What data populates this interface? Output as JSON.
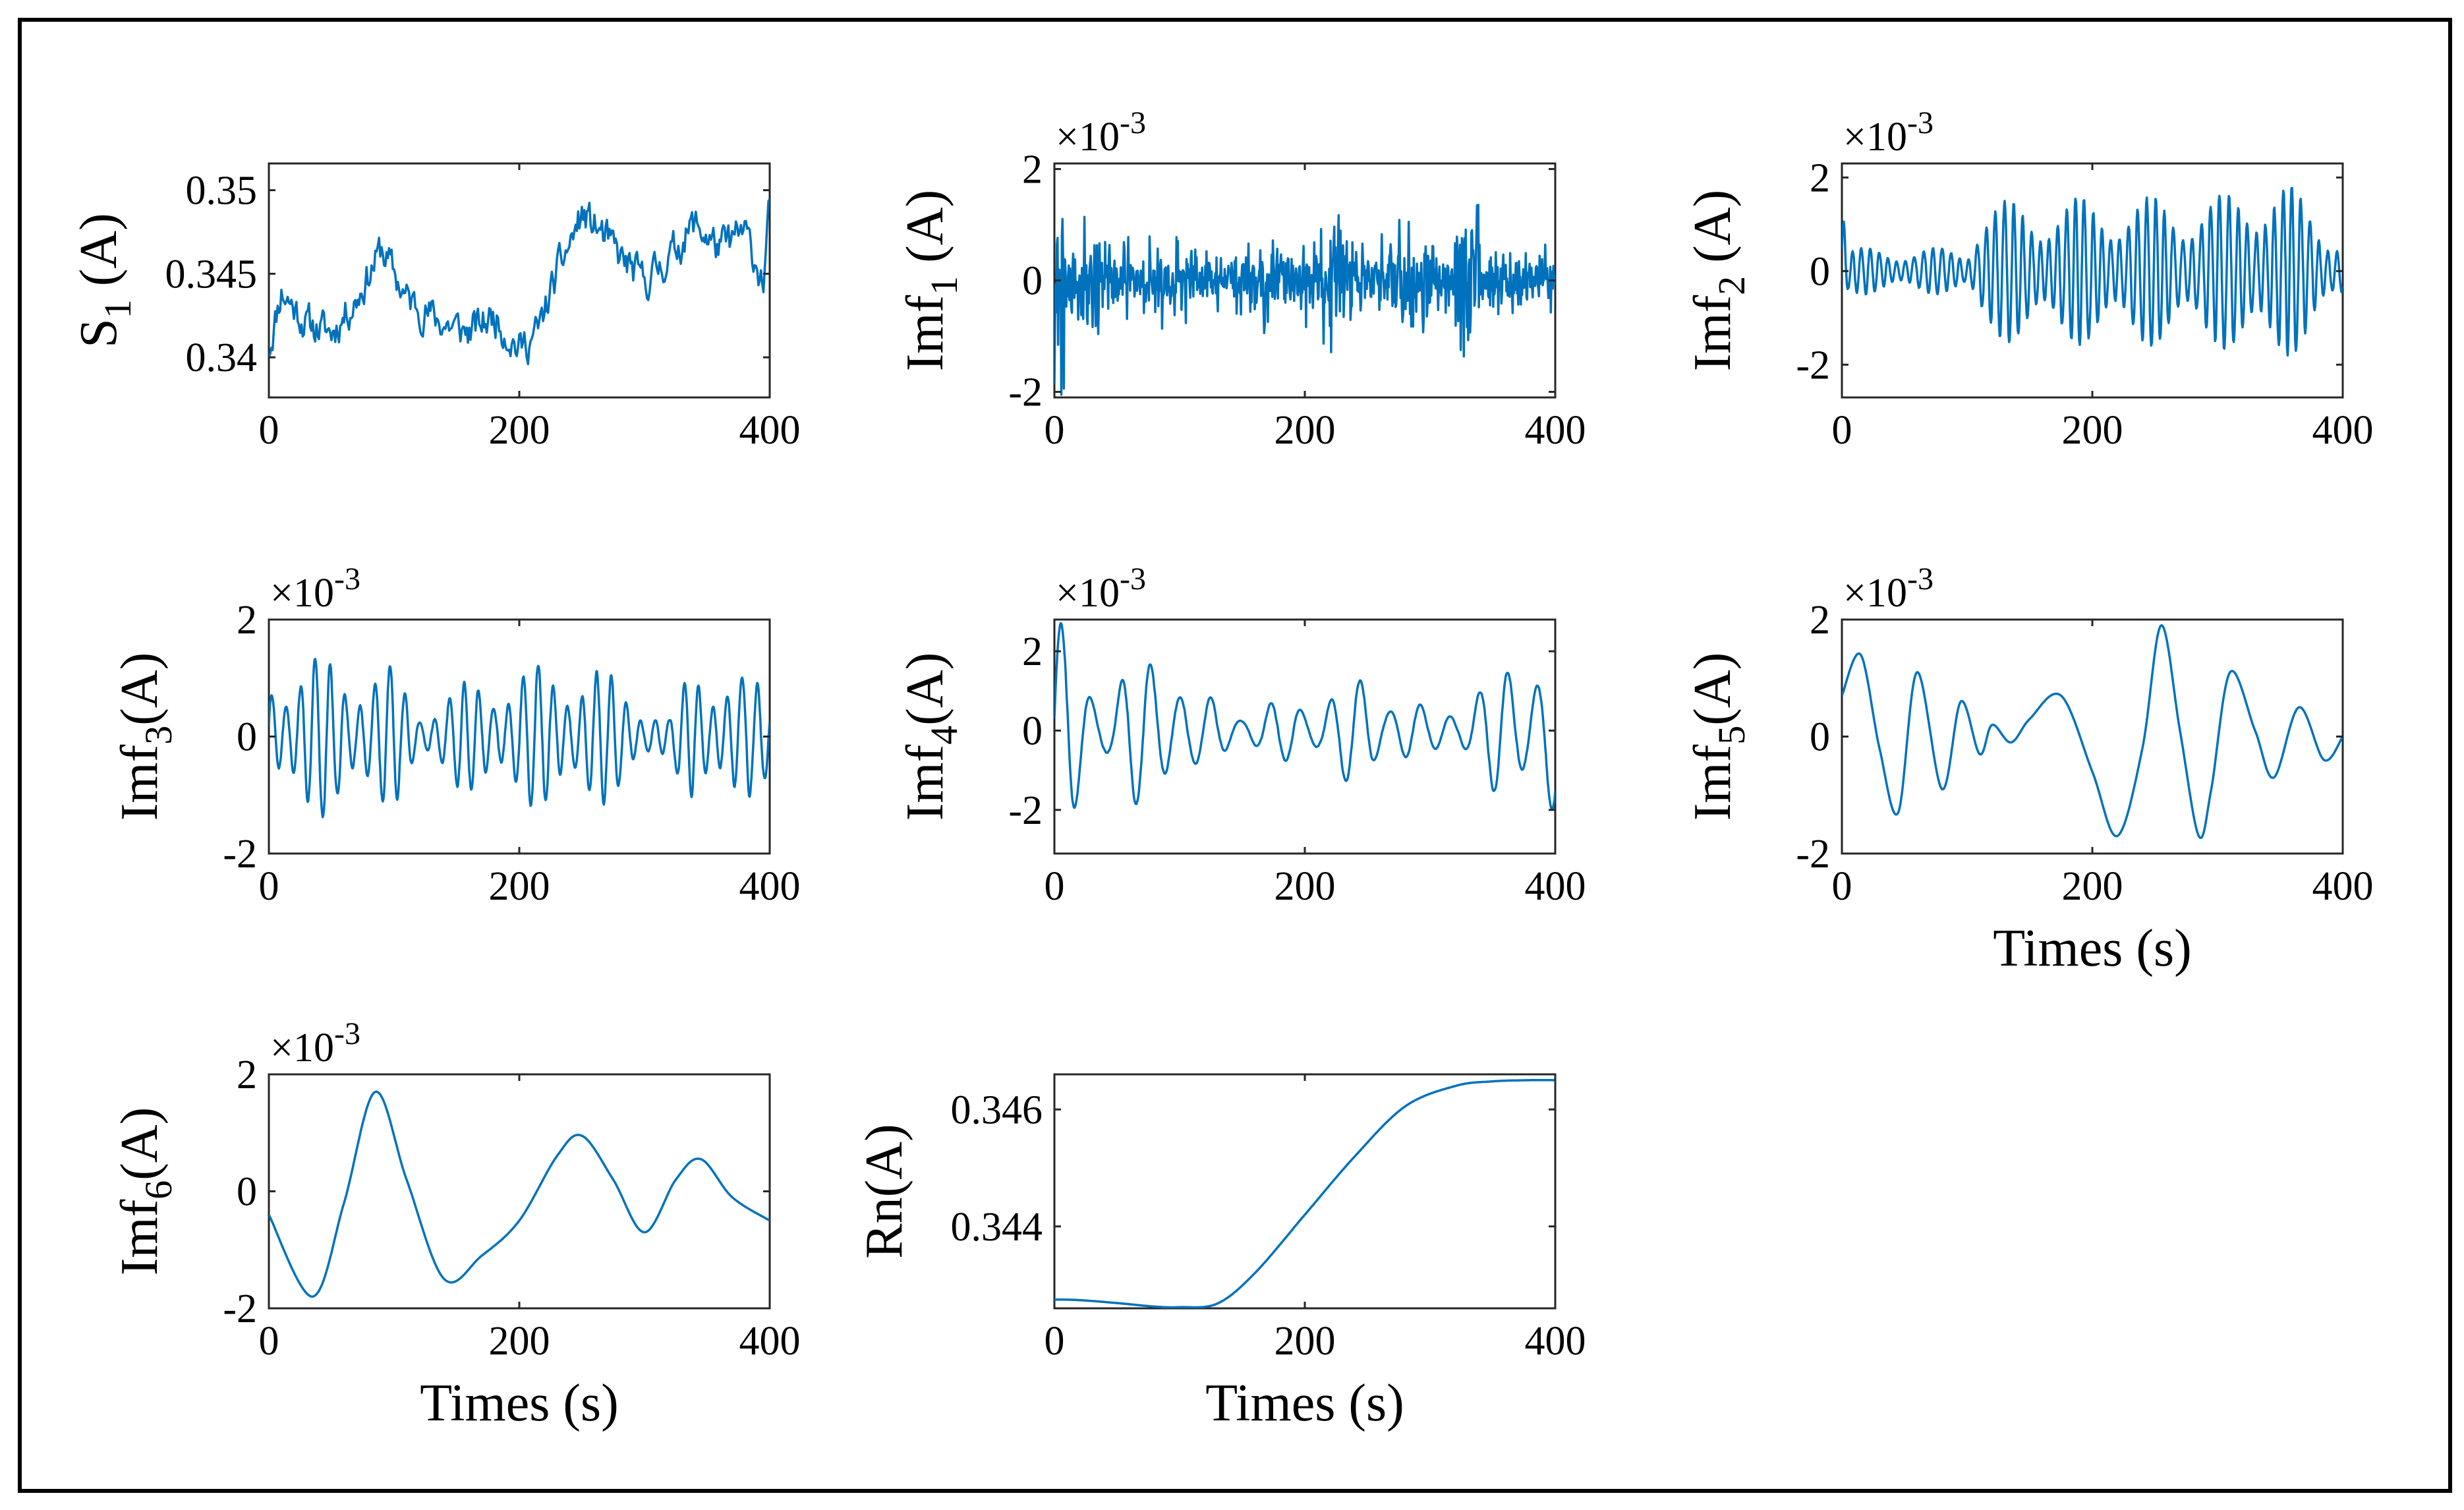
{
  "figure": {
    "line_color": "#0072BD",
    "panel_count": 8
  },
  "chart_data": [
    {
      "id": "s1",
      "type": "line",
      "ylabel": "S",
      "ylabel_sub": "1",
      "ylabel_suffix": " (A)",
      "xlabel": "",
      "exponent": "",
      "xlim": [
        0,
        400
      ],
      "ylim": [
        0.3376,
        0.3516
      ],
      "xticks": [
        0,
        200,
        400
      ],
      "xtick_labels": [
        "0",
        "200",
        "400"
      ],
      "yticks": [
        0.34,
        0.345,
        0.35
      ],
      "ytick_labels": [
        "0.34",
        "0.345",
        "0.35"
      ],
      "signal": {
        "kind": "noisy-trend",
        "seed": 11,
        "n": 400,
        "anchors_x": [
          0,
          10,
          30,
          50,
          70,
          90,
          110,
          140,
          160,
          180,
          200,
          215,
          230,
          250,
          265,
          280,
          300,
          320,
          340,
          360,
          380,
          395,
          400
        ],
        "anchors_y": [
          0.3405,
          0.344,
          0.342,
          0.3415,
          0.3435,
          0.3465,
          0.3435,
          0.342,
          0.3415,
          0.3425,
          0.3405,
          0.3415,
          0.345,
          0.3485,
          0.3475,
          0.346,
          0.3445,
          0.346,
          0.348,
          0.3465,
          0.3475,
          0.3445,
          0.349
        ],
        "noise": 0.0009
      }
    },
    {
      "id": "imf1",
      "type": "line",
      "ylabel": "Imf",
      "ylabel_sub": "1",
      "ylabel_suffix": " (A)",
      "xlabel": "",
      "exponent": "-3",
      "xlim": [
        0,
        400
      ],
      "ylim": [
        -2.1,
        2.1
      ],
      "xticks": [
        0,
        200,
        400
      ],
      "xtick_labels": [
        "0",
        "200",
        "400"
      ],
      "yticks": [
        -2,
        0,
        2
      ],
      "ytick_labels": [
        "-2",
        "0",
        "2"
      ],
      "signal": {
        "kind": "noise",
        "seed": 21,
        "n": 800,
        "amp": 0.75,
        "bursts": [
          [
            0,
            8,
            2.0
          ],
          [
            320,
            340,
            1.2
          ]
        ]
      }
    },
    {
      "id": "imf2",
      "type": "line",
      "ylabel": "Imf",
      "ylabel_sub": "2",
      "ylabel_suffix": " (A)",
      "xlabel": "",
      "exponent": "-3",
      "xlim": [
        0,
        400
      ],
      "ylim": [
        -2.7,
        2.3
      ],
      "xticks": [
        0,
        200,
        400
      ],
      "xtick_labels": [
        "0",
        "200",
        "400"
      ],
      "yticks": [
        -2,
        0,
        2
      ],
      "ytick_labels": [
        "-2",
        "0",
        "2"
      ],
      "signal": {
        "kind": "osc",
        "seed": 31,
        "n": 800,
        "freq": 0.14,
        "env_x": [
          0,
          5,
          100,
          110,
          200,
          300,
          340,
          360,
          400
        ],
        "env_y": [
          2.2,
          0.5,
          0.5,
          1.5,
          1.6,
          1.6,
          2.2,
          1.8,
          0.8
        ]
      }
    },
    {
      "id": "imf3",
      "type": "line",
      "ylabel": "Imf",
      "ylabel_sub": "3",
      "ylabel_suffix": "(A)",
      "xlabel": "",
      "exponent": "-3",
      "xlim": [
        0,
        400
      ],
      "ylim": [
        -2,
        2
      ],
      "xticks": [
        0,
        200,
        400
      ],
      "xtick_labels": [
        "0",
        "200",
        "400"
      ],
      "yticks": [
        -2,
        0,
        2
      ],
      "ytick_labels": [
        "-2",
        "0",
        "2"
      ],
      "signal": {
        "kind": "osc",
        "seed": 41,
        "n": 800,
        "freq": 0.085,
        "env_x": [
          0,
          40,
          100,
          120,
          150,
          200,
          260,
          320,
          340,
          400
        ],
        "env_y": [
          1.2,
          1.4,
          1.2,
          0.5,
          0.9,
          1.2,
          1.3,
          0.3,
          1.4,
          0.9
        ]
      }
    },
    {
      "id": "imf4",
      "type": "line",
      "ylabel": "Imf",
      "ylabel_sub": "4",
      "ylabel_suffix": "(A)",
      "xlabel": "",
      "exponent": "-3",
      "xlim": [
        0,
        400
      ],
      "ylim": [
        -3.1,
        2.8
      ],
      "xticks": [
        0,
        200,
        400
      ],
      "xtick_labels": [
        "0",
        "200",
        "400"
      ],
      "yticks": [
        -2,
        0,
        2
      ],
      "ytick_labels": [
        "-2",
        "0",
        "2"
      ],
      "signal": {
        "kind": "osc",
        "seed": 51,
        "n": 800,
        "freq": 0.042,
        "env_x": [
          0,
          10,
          40,
          90,
          110,
          150,
          200,
          250,
          300,
          340,
          380,
          400
        ],
        "env_y": [
          3.0,
          2.5,
          1.2,
          2.5,
          1.0,
          0.6,
          0.9,
          1.5,
          0.5,
          1.2,
          2.4,
          2.4
        ]
      }
    },
    {
      "id": "imf5",
      "type": "line",
      "ylabel": "Imf",
      "ylabel_sub": "5",
      "ylabel_suffix": "(A)",
      "xlabel": "Times (s)",
      "exponent": "-3",
      "xlim": [
        0,
        400
      ],
      "ylim": [
        -2,
        2
      ],
      "xticks": [
        0,
        200,
        400
      ],
      "xtick_labels": [
        "0",
        "200",
        "400"
      ],
      "yticks": [
        -2,
        0,
        2
      ],
      "ytick_labels": [
        "-2",
        "0",
        "2"
      ],
      "signal": {
        "kind": "points",
        "px": [
          0,
          15,
          30,
          45,
          60,
          80,
          95,
          110,
          120,
          135,
          150,
          175,
          200,
          220,
          240,
          255,
          270,
          285,
          295,
          310,
          330,
          345,
          365,
          385,
          400
        ],
        "py": [
          0.7,
          1.4,
          -0.2,
          -1.3,
          1.1,
          -0.9,
          0.6,
          -0.3,
          0.2,
          -0.1,
          0.3,
          0.7,
          -0.6,
          -1.7,
          -0.2,
          1.9,
          0.1,
          -1.7,
          -0.9,
          1.1,
          0.1,
          -0.7,
          0.5,
          -0.4,
          0.0
        ]
      }
    },
    {
      "id": "imf6",
      "type": "line",
      "ylabel": "Imf",
      "ylabel_sub": "6",
      "ylabel_suffix": "(A)",
      "xlabel": "Times (s)",
      "exponent": "-3",
      "xlim": [
        0,
        400
      ],
      "ylim": [
        -2,
        2
      ],
      "xticks": [
        0,
        200,
        400
      ],
      "xtick_labels": [
        "0",
        "200",
        "400"
      ],
      "yticks": [
        -2,
        0,
        2
      ],
      "ytick_labels": [
        "-2",
        "0",
        "2"
      ],
      "signal": {
        "kind": "points",
        "px": [
          0,
          35,
          60,
          85,
          110,
          140,
          170,
          200,
          230,
          250,
          275,
          300,
          325,
          345,
          370,
          400
        ],
        "py": [
          -0.4,
          -1.8,
          -0.2,
          1.7,
          0.2,
          -1.5,
          -1.1,
          -0.5,
          0.6,
          0.95,
          0.2,
          -0.7,
          0.2,
          0.55,
          -0.1,
          -0.5
        ]
      }
    },
    {
      "id": "rn",
      "type": "line",
      "ylabel": "Rn(A)",
      "ylabel_sub": "",
      "ylabel_suffix": "",
      "xlabel": "Times (s)",
      "exponent": "",
      "xlim": [
        0,
        400
      ],
      "ylim": [
        0.3426,
        0.3466
      ],
      "xticks": [
        0,
        200,
        400
      ],
      "xtick_labels": [
        "0",
        "200",
        "400"
      ],
      "yticks": [
        0.344,
        0.346
      ],
      "ytick_labels": [
        "0.344",
        "0.346"
      ],
      "signal": {
        "kind": "points",
        "px": [
          0,
          20,
          50,
          80,
          100,
          130,
          160,
          200,
          240,
          280,
          320,
          350,
          380,
          400
        ],
        "py": [
          0.34275,
          0.34274,
          0.34269,
          0.34263,
          0.34262,
          0.34268,
          0.3432,
          0.3442,
          0.3452,
          0.34605,
          0.3464,
          0.34648,
          0.3465,
          0.3465
        ]
      }
    }
  ]
}
